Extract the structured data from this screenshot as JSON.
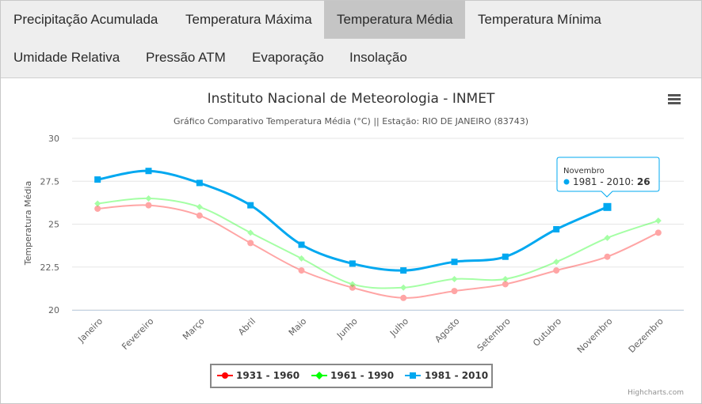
{
  "tabs": [
    {
      "label": "Precipitação Acumulada",
      "active": false
    },
    {
      "label": "Temperatura Máxima",
      "active": false
    },
    {
      "label": "Temperatura Média",
      "active": true
    },
    {
      "label": "Temperatura Mínima",
      "active": false
    },
    {
      "label": "Umidade Relativa",
      "active": false
    },
    {
      "label": "Pressão ATM",
      "active": false
    },
    {
      "label": "Evaporação",
      "active": false
    },
    {
      "label": "Insolação",
      "active": false
    }
  ],
  "menu_icon": "hamburger-menu-icon",
  "credits": "Highcharts.com",
  "tooltip": {
    "category": "Novembro",
    "series": "1981 - 2010",
    "value": "26"
  },
  "chart_data": {
    "type": "line",
    "title": "Instituto Nacional de Meteorologia - INMET",
    "subtitle": "Gráfico Comparativo Temperatura Média (°C) || Estação: RIO DE JANEIRO (83743)",
    "xlabel": "",
    "ylabel": "Temperatura Média",
    "ylim": [
      20,
      30
    ],
    "yticks": [
      "20",
      "22.5",
      "25",
      "27.5",
      "30"
    ],
    "grid": true,
    "legend": "bottom-center",
    "categories": [
      "Janeiro",
      "Fevereiro",
      "Março",
      "Abril",
      "Maio",
      "Junho",
      "Julho",
      "Agosto",
      "Setembro",
      "Outubro",
      "Novembro",
      "Dezembro"
    ],
    "series": [
      {
        "name": "1931 - 1960",
        "color": "#ff0000",
        "marker": "circle",
        "values": [
          25.9,
          26.1,
          25.5,
          23.9,
          22.3,
          21.3,
          20.7,
          21.1,
          21.5,
          22.3,
          23.1,
          24.5
        ]
      },
      {
        "name": "1961 - 1990",
        "color": "#00ff00",
        "marker": "diamond",
        "values": [
          26.2,
          26.5,
          26.0,
          24.5,
          23.0,
          21.5,
          21.3,
          21.8,
          21.8,
          22.8,
          24.2,
          25.2
        ]
      },
      {
        "name": "1981 - 2010",
        "color": "#00a8f0",
        "marker": "square",
        "values": [
          27.6,
          28.1,
          27.4,
          26.1,
          23.8,
          22.7,
          22.3,
          22.8,
          23.1,
          24.7,
          26.0,
          null
        ]
      }
    ]
  }
}
